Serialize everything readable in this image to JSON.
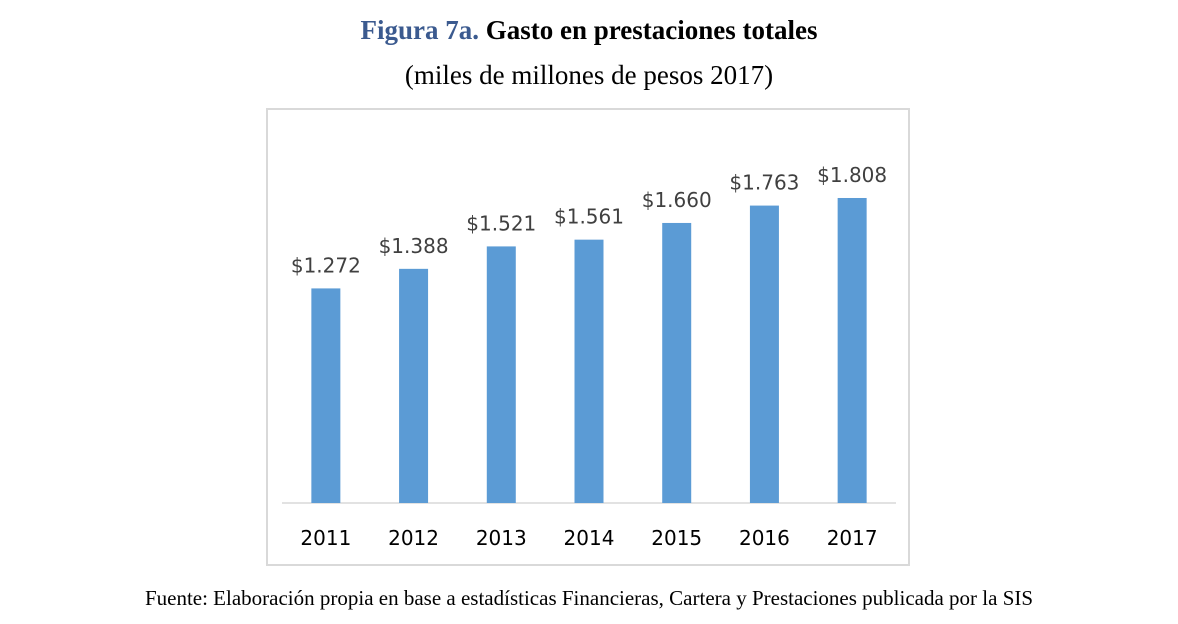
{
  "figure": {
    "number": "Figura 7a.",
    "title": "Gasto en prestaciones totales",
    "subtitle": "(miles de millones de pesos 2017)",
    "source": "Fuente: Elaboración propia en base a estadísticas Financieras, Cartera y Prestaciones publicada por la SIS"
  },
  "colors": {
    "bar": "#5b9bd5",
    "figure_number": "#3b5a8f"
  },
  "chart_data": {
    "type": "bar",
    "categories": [
      "2011",
      "2012",
      "2013",
      "2014",
      "2015",
      "2016",
      "2017"
    ],
    "values": [
      1272,
      1388,
      1521,
      1561,
      1660,
      1763,
      1808
    ],
    "data_labels": [
      "$1.272",
      "$1.388",
      "$1.521",
      "$1.561",
      "$1.660",
      "$1.763",
      "$1.808"
    ],
    "title": "",
    "xlabel": "",
    "ylabel": "",
    "ylim": [
      0,
      2000
    ],
    "grid": false,
    "legend": "none"
  }
}
